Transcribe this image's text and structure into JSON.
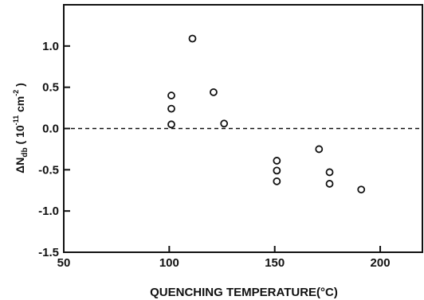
{
  "chart_data": {
    "type": "scatter",
    "title": "",
    "xlabel": "QUENCHING   TEMPERATURE(°C)",
    "ylabel": {
      "prefix": "ΔN",
      "subscript": "db",
      "unit_open": " ( 10",
      "exp1": "-11",
      "unit_mid": " cm",
      "exp2": "-2",
      "unit_close": " )"
    },
    "xlim": [
      50,
      220
    ],
    "ylim": [
      -1.5,
      1.5
    ],
    "x_ticks": [
      50,
      100,
      150,
      200
    ],
    "y_ticks": [
      -1.5,
      -1.0,
      -0.5,
      0.0,
      0.5,
      1.0
    ],
    "x_tick_labels": [
      "50",
      "100",
      "150",
      "200"
    ],
    "y_tick_labels": [
      "-1.5",
      "-1.0",
      "-0.5",
      "0.0",
      "0.5",
      "1.0"
    ],
    "reference_line": {
      "y": 0.0,
      "style": "dashed"
    },
    "grid": false,
    "legend": "none",
    "marker": "open-circle",
    "color": "#111111",
    "points": [
      {
        "x": 101,
        "y": 0.4
      },
      {
        "x": 101,
        "y": 0.24
      },
      {
        "x": 101,
        "y": 0.05
      },
      {
        "x": 111,
        "y": 1.09
      },
      {
        "x": 121,
        "y": 0.44
      },
      {
        "x": 126,
        "y": 0.06
      },
      {
        "x": 151,
        "y": -0.39
      },
      {
        "x": 151,
        "y": -0.51
      },
      {
        "x": 151,
        "y": -0.64
      },
      {
        "x": 171,
        "y": -0.25
      },
      {
        "x": 176,
        "y": -0.53
      },
      {
        "x": 176,
        "y": -0.67
      },
      {
        "x": 191,
        "y": -0.74
      }
    ]
  }
}
